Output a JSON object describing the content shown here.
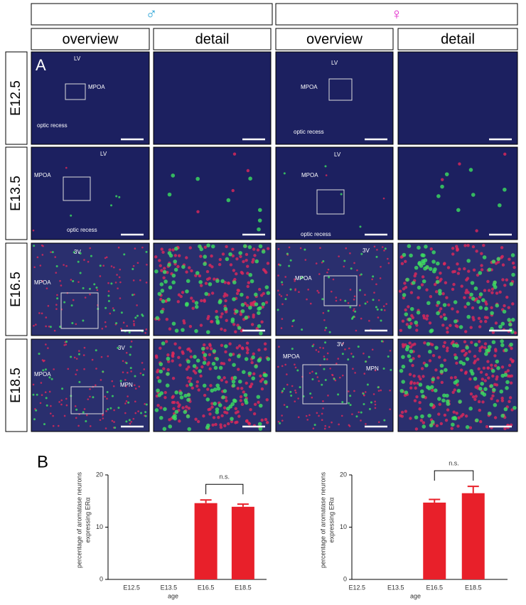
{
  "panel_a": {
    "label": "A",
    "sexes": [
      "♂",
      "♀"
    ],
    "columns": [
      "overview",
      "detail",
      "overview",
      "detail"
    ],
    "rows": [
      {
        "label": "E12.5",
        "male_labels": [
          "LV",
          "MPOA",
          "optic recess"
        ],
        "female_labels": [
          "LV",
          "MPOA",
          "optic recess"
        ]
      },
      {
        "label": "E13.5",
        "male_labels": [
          "LV",
          "MPOA",
          "optic recess"
        ],
        "female_labels": [
          "LV",
          "MPOA",
          "optic recess"
        ]
      },
      {
        "label": "E16.5",
        "male_labels": [
          "3V",
          "MPOA"
        ],
        "female_labels": [
          "3V",
          "MPOA"
        ]
      },
      {
        "label": "E18.5",
        "male_labels": [
          "3V",
          "MPOA",
          "MPN"
        ],
        "female_labels": [
          "3V",
          "MPOA",
          "MPN"
        ]
      }
    ]
  },
  "panel_b": {
    "label": "B"
  },
  "chart_data": [
    {
      "type": "bar",
      "y_label": [
        "percentage of aromatase neurons",
        "expressing ERα"
      ],
      "x_label": "age",
      "categories": [
        "E12.5",
        "E13.5",
        "E16.5",
        "E18.5"
      ],
      "values": [
        0,
        0,
        14.6,
        13.9
      ],
      "errors": [
        null,
        null,
        0.6,
        0.5
      ],
      "color": "#e8202a",
      "ylim": [
        0,
        20
      ],
      "yticks": [
        0,
        10,
        20
      ],
      "annotation": "n.s."
    },
    {
      "type": "bar",
      "y_label": [
        "percentage of aromatase neurons",
        "expressing ERα"
      ],
      "x_label": "age",
      "categories": [
        "E12.5",
        "E13.5",
        "E16.5",
        "E18.5"
      ],
      "values": [
        0,
        0,
        14.7,
        16.5
      ],
      "errors": [
        null,
        null,
        0.6,
        1.3
      ],
      "color": "#e8202a",
      "ylim": [
        0,
        20
      ],
      "yticks": [
        0,
        10,
        20
      ],
      "annotation": "n.s."
    }
  ]
}
